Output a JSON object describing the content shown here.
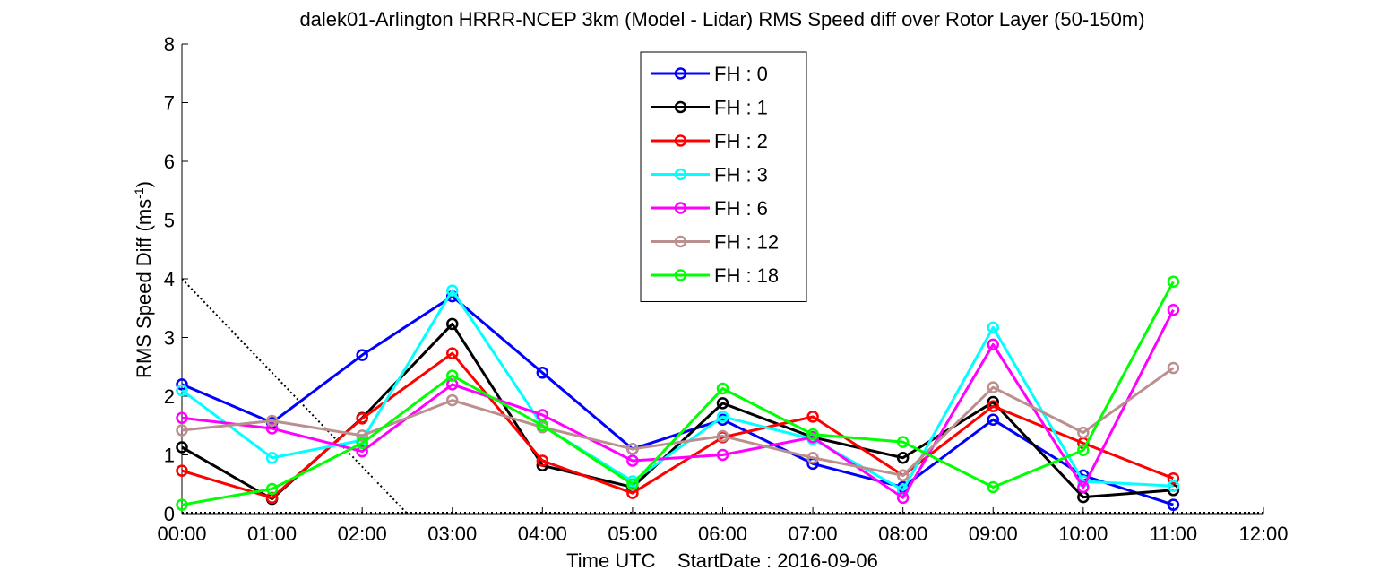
{
  "chart_data": {
    "type": "line",
    "title": "dalek01-Arlington HRRR-NCEP 3km (Model - Lidar) RMS Speed diff over Rotor Layer (50-150m)",
    "xlabel": "Time UTC    StartDate : 2016-09-06",
    "ylabel_main": "RMS Speed Diff (ms",
    "ylabel_sup": "-1",
    "ylabel_end": ")",
    "x_ticks": [
      "00:00",
      "01:00",
      "02:00",
      "03:00",
      "04:00",
      "05:00",
      "06:00",
      "07:00",
      "08:00",
      "09:00",
      "10:00",
      "11:00",
      "12:00"
    ],
    "y_ticks": [
      "0",
      "1",
      "2",
      "3",
      "4",
      "5",
      "6",
      "7",
      "8"
    ],
    "xlim": [
      0,
      12
    ],
    "ylim": [
      0,
      8
    ],
    "grid": false,
    "legend_position": "top-center",
    "x": [
      0,
      1,
      2,
      3,
      4,
      5,
      6,
      7,
      8,
      9,
      10,
      11
    ],
    "series": [
      {
        "name": "FH : 0",
        "color": "#0000ff",
        "values": [
          2.2,
          1.55,
          2.7,
          3.7,
          2.4,
          1.1,
          1.6,
          0.85,
          0.45,
          1.6,
          0.65,
          0.15
        ]
      },
      {
        "name": "FH : 1",
        "color": "#000000",
        "values": [
          1.13,
          0.25,
          1.63,
          3.23,
          0.82,
          0.45,
          1.88,
          1.3,
          0.95,
          1.9,
          0.28,
          0.4
        ]
      },
      {
        "name": "FH : 2",
        "color": "#ff0000",
        "values": [
          0.73,
          0.27,
          1.62,
          2.73,
          0.9,
          0.35,
          1.3,
          1.65,
          0.65,
          1.83,
          1.2,
          0.6
        ]
      },
      {
        "name": "FH : 3",
        "color": "#00ffff",
        "values": [
          2.1,
          0.95,
          1.25,
          3.8,
          1.5,
          0.55,
          1.65,
          1.27,
          0.4,
          3.17,
          0.55,
          0.47
        ]
      },
      {
        "name": "FH : 6",
        "color": "#ff00ff",
        "values": [
          1.63,
          1.45,
          1.06,
          2.2,
          1.68,
          0.9,
          1.0,
          1.3,
          0.27,
          2.88,
          0.45,
          3.47
        ]
      },
      {
        "name": "FH : 12",
        "color": "#bc8f8f",
        "values": [
          1.42,
          1.58,
          1.33,
          1.93,
          1.47,
          1.1,
          1.32,
          0.95,
          0.65,
          2.15,
          1.38,
          2.48
        ]
      },
      {
        "name": "FH : 18",
        "color": "#00ff00",
        "values": [
          0.15,
          0.42,
          1.2,
          2.35,
          1.5,
          0.5,
          2.13,
          1.35,
          1.22,
          0.45,
          1.08,
          3.95
        ]
      }
    ],
    "annotation_line": {
      "style": "dotted",
      "color": "#000000",
      "from": [
        0,
        4
      ],
      "to": [
        2.5,
        0
      ]
    },
    "reference_line": {
      "style": "dotted",
      "color": "#000000",
      "y": 0
    }
  }
}
